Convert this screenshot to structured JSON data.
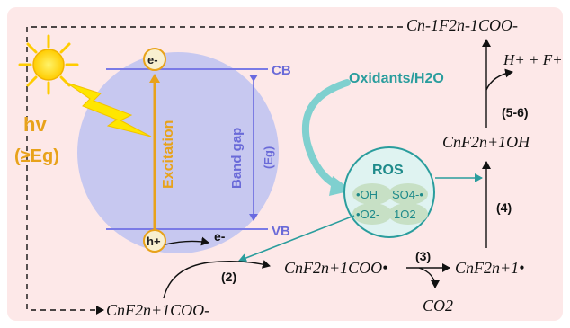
{
  "labels": {
    "cb": "CB",
    "vb": "VB",
    "electron": "e-",
    "hole": "h+",
    "electron_released": "e-",
    "excitation": "Excitation",
    "band_gap": "Band gap",
    "band_gap_symbol": "(Eg)",
    "hv": "hv",
    "hv_condition": "(≥Eg)",
    "oxidants": "Oxidants/H2O"
  },
  "ros": {
    "title": "ROS",
    "species": [
      "•OH",
      "SO4-•",
      "•O2-",
      "1O2"
    ]
  },
  "steps": {
    "s2": "(2)",
    "s3": "(3)",
    "s4": "(4)",
    "s56": "(5-6)"
  },
  "species": {
    "start": "CnF2n+1COO-",
    "radical": "CnF2n+1COO•",
    "perfluoroalkyl_radical": "CnF2n+1•",
    "alcohol": "CnF2n+1OH",
    "product": "Cn-1F2n-1COO-",
    "co2": "CO2",
    "hf": "H+ + F+"
  },
  "colors": {
    "background": "#fde8e8",
    "circle": "#c7c8f0",
    "band_line": "#7b7be6",
    "accent_orange": "#e8a21a",
    "teal": "#2a9d9d"
  }
}
